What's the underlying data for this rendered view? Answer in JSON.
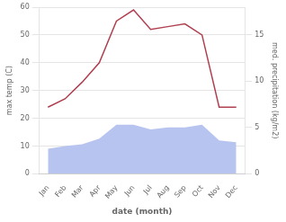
{
  "chart_data": {
    "type": "line",
    "xlabel": "date (month)",
    "ylabel": "max temp (C)",
    "y2label": "med. precipitation (kg/m2)",
    "categories": [
      "Jan",
      "Feb",
      "Mar",
      "Apr",
      "May",
      "Jun",
      "Jul",
      "Aug",
      "Sep",
      "Oct",
      "Nov",
      "Dec"
    ],
    "series": [
      {
        "type": "area",
        "color": "#b8c4f0",
        "axis": "y2",
        "values": [
          2.7,
          3.0,
          3.2,
          3.8,
          5.3,
          5.3,
          4.8,
          5.0,
          5.0,
          5.3,
          3.6,
          3.4
        ]
      },
      {
        "type": "line",
        "color": "#b04050",
        "values": [
          24,
          27,
          33,
          40,
          55,
          59,
          52,
          53,
          54,
          50,
          24,
          24
        ]
      }
    ],
    "ylim": [
      0,
      60
    ],
    "yticks": [
      0,
      10,
      20,
      30,
      40,
      50,
      60
    ],
    "y2lim": [
      0,
      18.0
    ],
    "y2ticks": [
      0,
      5,
      10,
      15
    ],
    "grid": true
  }
}
